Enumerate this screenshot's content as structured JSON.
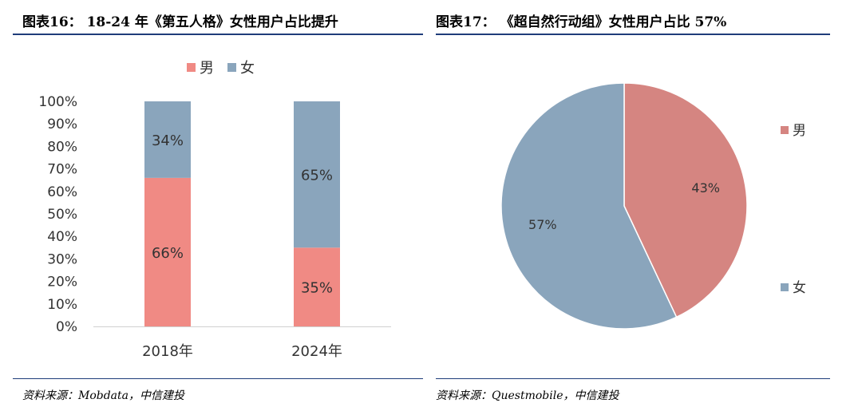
{
  "left_panel": {
    "title": "图表16： 18-24 年《第五人格》女性用户占比提升",
    "source": "资料来源：Mobdata，中信建投"
  },
  "right_panel": {
    "title": "图表17： 《超自然行动组》女性用户占比 57%",
    "source": "资料来源：Questmobile，中信建投"
  },
  "colors": {
    "male": "#f08a84",
    "female": "#8aa5bc",
    "male_pie": "#d58581",
    "rule": "#1f3d7a"
  },
  "chart_data": [
    {
      "type": "bar",
      "stacked": true,
      "categories": [
        "2018年",
        "2024年"
      ],
      "series": [
        {
          "name": "男",
          "values": [
            66,
            35
          ],
          "labels": [
            "66%",
            "35%"
          ]
        },
        {
          "name": "女",
          "values": [
            34,
            65
          ],
          "labels": [
            "34%",
            "65%"
          ]
        }
      ],
      "yticks": [
        "0%",
        "10%",
        "20%",
        "30%",
        "40%",
        "50%",
        "60%",
        "70%",
        "80%",
        "90%",
        "100%"
      ],
      "ylim": [
        0,
        100
      ],
      "legend": "top",
      "grid": false
    },
    {
      "type": "pie",
      "slices": [
        {
          "name": "男",
          "value": 43,
          "label": "43%"
        },
        {
          "name": "女",
          "value": 57,
          "label": "57%"
        }
      ],
      "legend": "right"
    }
  ]
}
